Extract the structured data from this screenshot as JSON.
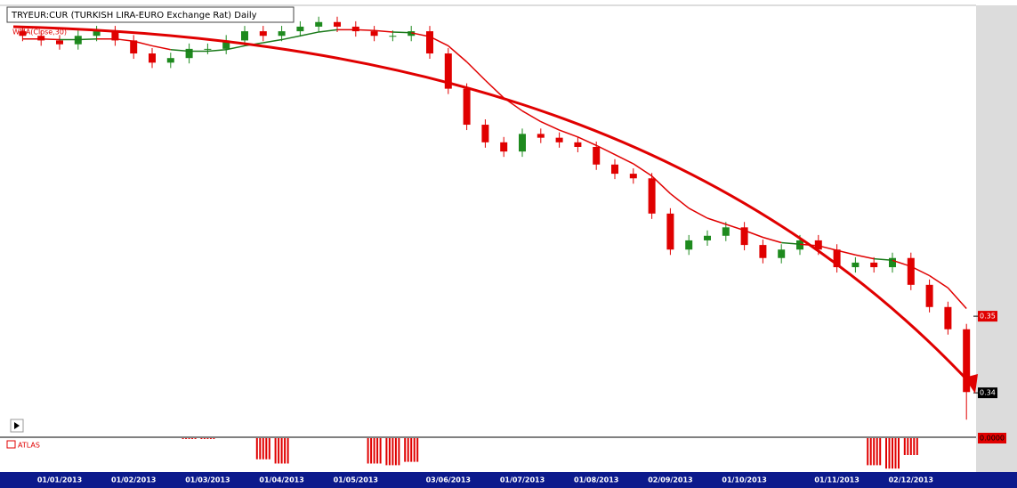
{
  "chart_data": {
    "type": "candlestick",
    "title": "TRYEUR:CUR (TURKISH LIRA-EURO Exchange Rat) Daily",
    "categories": [
      null,
      null,
      "01/01/2013",
      null,
      null,
      null,
      "01/02/2013",
      null,
      null,
      null,
      "01/03/2013",
      null,
      null,
      null,
      "01/04/2013",
      null,
      null,
      null,
      "01/05/2013",
      null,
      null,
      null,
      null,
      "03/06/2013",
      null,
      null,
      null,
      "01/07/2013",
      null,
      null,
      null,
      "01/08/2013",
      null,
      null,
      null,
      "02/09/2013",
      null,
      null,
      null,
      "01/10/2013",
      null,
      null,
      null,
      null,
      "01/11/2013",
      null,
      null,
      null,
      "02/12/2013",
      null,
      null,
      null
    ],
    "open": [
      0.3872,
      0.3866,
      0.386,
      0.3855,
      0.3866,
      0.3872,
      0.386,
      0.3843,
      0.3831,
      0.3837,
      0.3849,
      0.3849,
      0.386,
      0.3872,
      0.3866,
      0.3872,
      0.3878,
      0.3884,
      0.3878,
      0.3872,
      0.3866,
      0.3866,
      0.3872,
      0.3843,
      0.3797,
      0.375,
      0.3727,
      0.3715,
      0.3738,
      0.3733,
      0.3727,
      0.3721,
      0.3698,
      0.3686,
      0.368,
      0.3634,
      0.3587,
      0.3599,
      0.3605,
      0.3616,
      0.3593,
      0.3576,
      0.3587,
      0.3599,
      0.3587,
      0.3564,
      0.357,
      0.3564,
      0.3576,
      0.3541,
      0.3512,
      0.3483
    ],
    "high": [
      0.3879,
      0.3873,
      0.3867,
      0.3873,
      0.3879,
      0.3879,
      0.3867,
      0.385,
      0.3844,
      0.3856,
      0.3856,
      0.3867,
      0.3879,
      0.3879,
      0.3879,
      0.3885,
      0.3891,
      0.3891,
      0.3885,
      0.3879,
      0.3873,
      0.3879,
      0.3879,
      0.385,
      0.3804,
      0.3757,
      0.3734,
      0.3745,
      0.3745,
      0.374,
      0.3734,
      0.3728,
      0.3705,
      0.3693,
      0.3687,
      0.3641,
      0.3606,
      0.3612,
      0.3623,
      0.3623,
      0.36,
      0.3594,
      0.3606,
      0.3606,
      0.3594,
      0.3577,
      0.3577,
      0.3583,
      0.3583,
      0.3548,
      0.3519,
      0.349
    ],
    "low": [
      0.3859,
      0.3853,
      0.3848,
      0.3848,
      0.3859,
      0.3853,
      0.3836,
      0.3824,
      0.3824,
      0.383,
      0.3842,
      0.3842,
      0.3853,
      0.3859,
      0.3859,
      0.3865,
      0.3871,
      0.3871,
      0.3865,
      0.3859,
      0.3859,
      0.3859,
      0.3836,
      0.379,
      0.3743,
      0.372,
      0.3708,
      0.3708,
      0.3726,
      0.372,
      0.3714,
      0.3691,
      0.3679,
      0.3673,
      0.3627,
      0.358,
      0.358,
      0.3592,
      0.3598,
      0.3586,
      0.3569,
      0.3569,
      0.358,
      0.358,
      0.3557,
      0.3557,
      0.3557,
      0.3557,
      0.3534,
      0.3505,
      0.3476,
      0.3365
    ],
    "close": [
      0.3866,
      0.386,
      0.3855,
      0.3866,
      0.3872,
      0.386,
      0.3843,
      0.3831,
      0.3837,
      0.3849,
      0.3849,
      0.386,
      0.3872,
      0.3866,
      0.3872,
      0.3878,
      0.3884,
      0.3878,
      0.3872,
      0.3866,
      0.3866,
      0.3872,
      0.3843,
      0.3797,
      0.375,
      0.3727,
      0.3715,
      0.3738,
      0.3733,
      0.3727,
      0.3721,
      0.3698,
      0.3686,
      0.368,
      0.3634,
      0.3587,
      0.3599,
      0.3605,
      0.3616,
      0.3593,
      0.3576,
      0.3587,
      0.3599,
      0.3587,
      0.3564,
      0.357,
      0.3564,
      0.3576,
      0.3541,
      0.3512,
      0.3483,
      0.3401
    ],
    "up_color": "#1e8a1e",
    "down_color": "#e00000",
    "wma": {
      "name": "WMA(Close,30)",
      "color": "#e00000",
      "up_color": "#1a7a1a",
      "values": [
        0.3862,
        0.3862,
        0.3861,
        0.3861,
        0.3862,
        0.3862,
        0.3859,
        0.3853,
        0.3848,
        0.3846,
        0.3846,
        0.3848,
        0.3853,
        0.3857,
        0.3861,
        0.3866,
        0.3871,
        0.3874,
        0.3874,
        0.3873,
        0.3871,
        0.387,
        0.3865,
        0.3853,
        0.3832,
        0.3808,
        0.3785,
        0.3768,
        0.3754,
        0.3743,
        0.3734,
        0.3723,
        0.3711,
        0.3699,
        0.3683,
        0.366,
        0.3641,
        0.3628,
        0.362,
        0.3612,
        0.3603,
        0.3596,
        0.3594,
        0.3592,
        0.3586,
        0.358,
        0.3575,
        0.3573,
        0.3565,
        0.3553,
        0.3537,
        0.351
      ]
    },
    "ylim": [
      0.3349,
      0.39
    ],
    "yticks": [
      0.35
    ],
    "current_price_ticks": [
      0.34
    ],
    "atlas": {
      "name": "ATLAS",
      "color": "#e00000",
      "values": [
        0,
        0,
        0,
        0,
        0,
        0,
        0,
        0,
        0,
        -1,
        -1,
        0,
        0,
        -25,
        -30,
        0,
        0,
        0,
        0,
        -30,
        -32,
        -28,
        0,
        0,
        0,
        0,
        0,
        0,
        0,
        0,
        0,
        0,
        0,
        0,
        0,
        0,
        0,
        0,
        0,
        0,
        0,
        0,
        0,
        0,
        0,
        0,
        -32,
        -36,
        -20,
        0,
        0,
        0
      ],
      "ylim": [
        -40,
        0
      ],
      "yticks": [
        {
          "value": 0,
          "label": "0.0000"
        }
      ]
    }
  }
}
